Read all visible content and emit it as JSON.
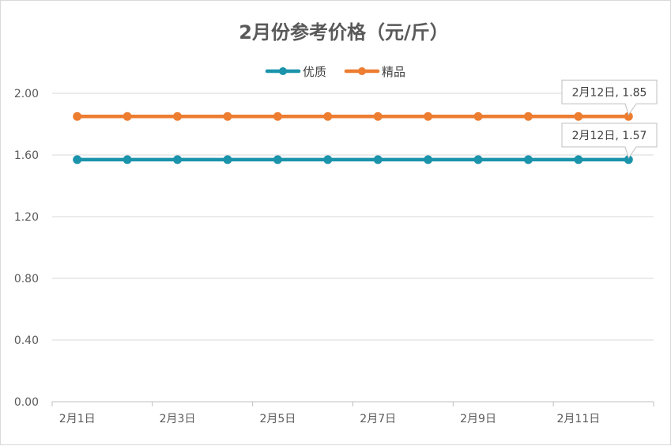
{
  "chart_data": {
    "type": "line",
    "title": "2月份参考价格（元/斤）",
    "xlabel": "",
    "ylabel": "",
    "categories": [
      "2月1日",
      "2月2日",
      "2月3日",
      "2月4日",
      "2月5日",
      "2月6日",
      "2月7日",
      "2月8日",
      "2月9日",
      "2月10日",
      "2月11日",
      "2月12日"
    ],
    "x_tick_labels": [
      "2月1日",
      "2月3日",
      "2月5日",
      "2月7日",
      "2月9日",
      "2月11日"
    ],
    "ylim": [
      0,
      2
    ],
    "y_ticks": [
      "0.00",
      "0.40",
      "0.80",
      "1.20",
      "1.60",
      "2.00"
    ],
    "y_tick_values": [
      0,
      0.4,
      0.8,
      1.2,
      1.6,
      2.0
    ],
    "grid": true,
    "legend_position": "top",
    "series": [
      {
        "name": "优质",
        "color": "#1a93ab",
        "values": [
          1.57,
          1.57,
          1.57,
          1.57,
          1.57,
          1.57,
          1.57,
          1.57,
          1.57,
          1.57,
          1.57,
          1.57
        ]
      },
      {
        "name": "精品",
        "color": "#ed7d31",
        "values": [
          1.85,
          1.85,
          1.85,
          1.85,
          1.85,
          1.85,
          1.85,
          1.85,
          1.85,
          1.85,
          1.85,
          1.85
        ]
      }
    ],
    "annotations": [
      {
        "series": "精品",
        "category": "2月12日",
        "text": "2月12日, 1.85"
      },
      {
        "series": "优质",
        "category": "2月12日",
        "text": "2月12日, 1.57"
      }
    ]
  }
}
